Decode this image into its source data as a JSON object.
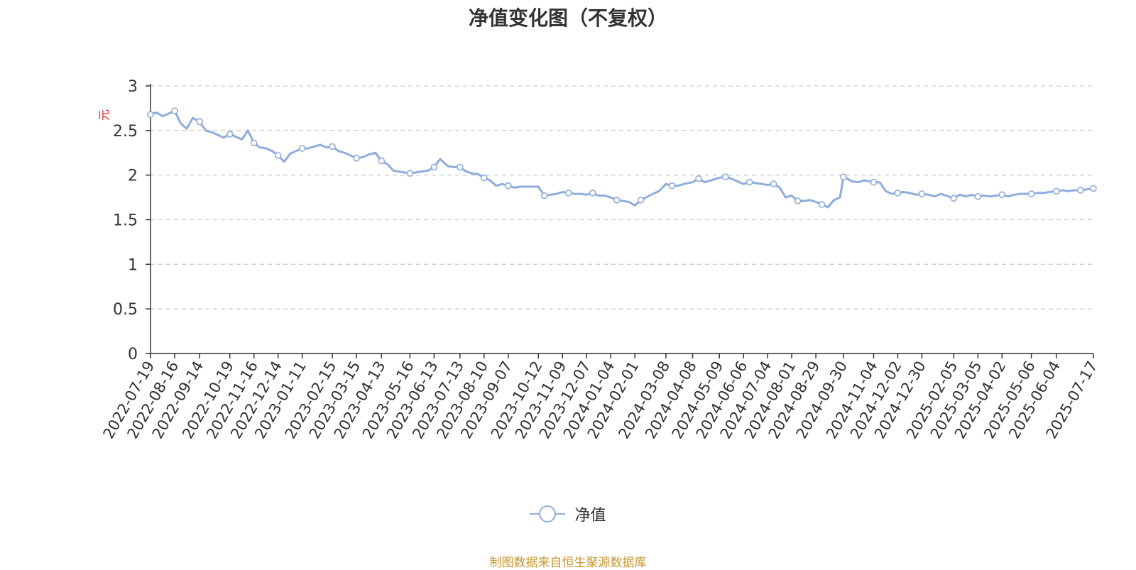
{
  "colors": {
    "series": "#8eaddb",
    "axis": "#333333",
    "grid": "#cccccc",
    "unit": "#e02020",
    "source": "#c8962e"
  },
  "source_note": "制图数据来自恒生聚源数据库",
  "chart_data": {
    "type": "line",
    "title": "净值变化图（不复权）",
    "ylabel": "元",
    "ylim": [
      0,
      3
    ],
    "yticks": [
      "0",
      "0.5",
      "1",
      "1.5",
      "2",
      "2.5",
      "3"
    ],
    "grid": "horizontal dashed",
    "legend_position": "bottom-center",
    "xticks": [
      "2022-07-19",
      "2022-08-16",
      "2022-09-14",
      "2022-10-19",
      "2022-11-16",
      "2022-12-14",
      "2023-01-11",
      "2023-02-15",
      "2023-03-15",
      "2023-04-13",
      "2023-05-16",
      "2023-06-13",
      "2023-07-13",
      "2023-08-10",
      "2023-09-07",
      "2023-10-12",
      "2023-11-09",
      "2023-12-07",
      "2024-01-04",
      "2024-02-01",
      "2024-03-08",
      "2024-04-08",
      "2024-05-09",
      "2024-06-06",
      "2024-07-04",
      "2024-08-01",
      "2024-08-29",
      "2024-09-30",
      "2024-11-04",
      "2024-12-02",
      "2024-12-30",
      "2025-02-05",
      "2025-03-05",
      "2025-04-02",
      "2025-05-06",
      "2025-06-04",
      "2025-07-17"
    ],
    "series": [
      {
        "name": "净值",
        "x": [
          "2022-07-19",
          "2022-07-26",
          "2022-08-02",
          "2022-08-09",
          "2022-08-16",
          "2022-08-23",
          "2022-08-30",
          "2022-09-06",
          "2022-09-14",
          "2022-09-21",
          "2022-09-28",
          "2022-10-12",
          "2022-10-19",
          "2022-10-26",
          "2022-11-02",
          "2022-11-09",
          "2022-11-16",
          "2022-11-23",
          "2022-11-30",
          "2022-12-07",
          "2022-12-14",
          "2022-12-21",
          "2022-12-28",
          "2023-01-04",
          "2023-01-11",
          "2023-01-18",
          "2023-02-01",
          "2023-02-08",
          "2023-02-15",
          "2023-02-22",
          "2023-03-01",
          "2023-03-08",
          "2023-03-15",
          "2023-03-22",
          "2023-03-29",
          "2023-04-06",
          "2023-04-13",
          "2023-04-20",
          "2023-04-27",
          "2023-05-09",
          "2023-05-16",
          "2023-05-23",
          "2023-05-30",
          "2023-06-06",
          "2023-06-13",
          "2023-06-20",
          "2023-06-29",
          "2023-07-06",
          "2023-07-13",
          "2023-07-20",
          "2023-07-27",
          "2023-08-03",
          "2023-08-10",
          "2023-08-17",
          "2023-08-24",
          "2023-08-31",
          "2023-09-07",
          "2023-09-14",
          "2023-09-21",
          "2023-10-12",
          "2023-10-19",
          "2023-10-26",
          "2023-11-02",
          "2023-11-09",
          "2023-11-16",
          "2023-11-23",
          "2023-11-30",
          "2023-12-07",
          "2023-12-14",
          "2023-12-21",
          "2023-12-28",
          "2024-01-04",
          "2024-01-11",
          "2024-01-18",
          "2024-01-25",
          "2024-02-01",
          "2024-02-08",
          "2024-02-22",
          "2024-02-29",
          "2024-03-08",
          "2024-03-15",
          "2024-03-22",
          "2024-03-29",
          "2024-04-08",
          "2024-04-15",
          "2024-04-22",
          "2024-04-29",
          "2024-05-09",
          "2024-05-16",
          "2024-05-23",
          "2024-05-30",
          "2024-06-06",
          "2024-06-13",
          "2024-06-20",
          "2024-06-27",
          "2024-07-04",
          "2024-07-11",
          "2024-07-18",
          "2024-07-25",
          "2024-08-01",
          "2024-08-08",
          "2024-08-15",
          "2024-08-22",
          "2024-08-29",
          "2024-09-05",
          "2024-09-12",
          "2024-09-19",
          "2024-09-26",
          "2024-09-30",
          "2024-10-10",
          "2024-10-17",
          "2024-10-24",
          "2024-11-04",
          "2024-11-11",
          "2024-11-18",
          "2024-11-25",
          "2024-12-02",
          "2024-12-09",
          "2024-12-16",
          "2024-12-23",
          "2024-12-30",
          "2025-01-07",
          "2025-01-14",
          "2025-01-21",
          "2025-02-05",
          "2025-02-12",
          "2025-02-19",
          "2025-02-26",
          "2025-03-05",
          "2025-03-12",
          "2025-03-19",
          "2025-03-26",
          "2025-04-02",
          "2025-04-09",
          "2025-04-16",
          "2025-04-23",
          "2025-05-06",
          "2025-05-13",
          "2025-05-20",
          "2025-05-27",
          "2025-06-04",
          "2025-06-11",
          "2025-06-18",
          "2025-06-25",
          "2025-07-02",
          "2025-07-09",
          "2025-07-17"
        ],
        "values": [
          2.68,
          2.7,
          2.66,
          2.69,
          2.72,
          2.58,
          2.52,
          2.64,
          2.6,
          2.5,
          2.48,
          2.42,
          2.46,
          2.43,
          2.4,
          2.5,
          2.36,
          2.31,
          2.3,
          2.27,
          2.22,
          2.15,
          2.24,
          2.27,
          2.3,
          2.3,
          2.34,
          2.31,
          2.32,
          2.27,
          2.25,
          2.22,
          2.19,
          2.2,
          2.23,
          2.25,
          2.16,
          2.12,
          2.05,
          2.03,
          2.02,
          2.03,
          2.04,
          2.05,
          2.09,
          2.18,
          2.1,
          2.09,
          2.09,
          2.04,
          2.02,
          2.01,
          1.97,
          1.94,
          1.88,
          1.9,
          1.88,
          1.86,
          1.87,
          1.87,
          1.77,
          1.78,
          1.79,
          1.81,
          1.8,
          1.79,
          1.79,
          1.78,
          1.8,
          1.77,
          1.77,
          1.75,
          1.72,
          1.71,
          1.7,
          1.66,
          1.72,
          1.79,
          1.82,
          1.9,
          1.88,
          1.88,
          1.9,
          1.92,
          1.96,
          1.92,
          1.94,
          1.97,
          1.98,
          1.96,
          1.93,
          1.9,
          1.92,
          1.91,
          1.9,
          1.89,
          1.9,
          1.86,
          1.75,
          1.77,
          1.71,
          1.71,
          1.72,
          1.7,
          1.67,
          1.64,
          1.72,
          1.75,
          1.98,
          1.93,
          1.92,
          1.94,
          1.92,
          1.92,
          1.82,
          1.79,
          1.8,
          1.81,
          1.8,
          1.78,
          1.79,
          1.78,
          1.76,
          1.79,
          1.74,
          1.78,
          1.76,
          1.78,
          1.76,
          1.77,
          1.76,
          1.77,
          1.78,
          1.76,
          1.78,
          1.79,
          1.79,
          1.8,
          1.8,
          1.81,
          1.82,
          1.83,
          1.82,
          1.83,
          1.83,
          1.84,
          1.85
        ]
      }
    ]
  }
}
